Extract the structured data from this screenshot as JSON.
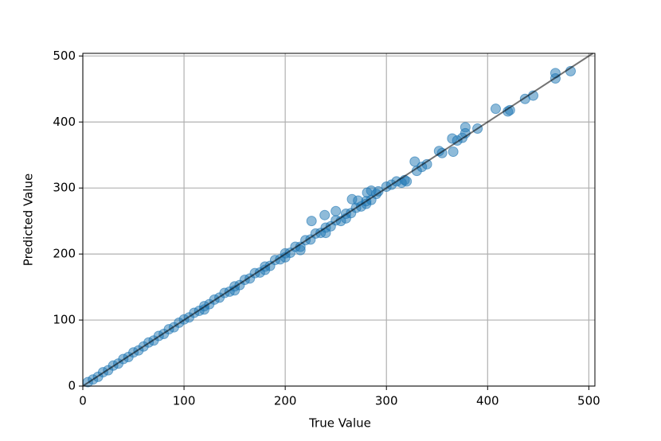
{
  "chart_data": {
    "type": "scatter",
    "x_label": "True Value",
    "y_label": "Predicted Value",
    "xlim": [
      0,
      506
    ],
    "ylim": [
      0,
      504
    ],
    "xticks": [
      0,
      100,
      200,
      300,
      400,
      500
    ],
    "yticks": [
      0,
      100,
      200,
      300,
      400,
      500
    ],
    "grid": true,
    "identity_line": true,
    "identity_color": "#000000",
    "x": [
      5,
      10,
      15,
      20,
      25,
      30,
      35,
      40,
      45,
      50,
      55,
      60,
      65,
      70,
      75,
      80,
      85,
      90,
      95,
      100,
      105,
      110,
      115,
      120,
      125,
      130,
      135,
      140,
      145,
      150,
      155,
      160,
      165,
      170,
      175,
      180,
      185,
      190,
      195,
      200,
      205,
      210,
      215,
      220,
      225,
      230,
      235,
      240,
      245,
      250,
      255,
      260,
      265,
      270,
      275,
      280,
      285,
      290,
      150,
      180,
      200,
      215,
      240,
      260,
      280,
      120,
      266,
      272,
      281,
      285,
      250,
      239,
      226,
      292,
      300,
      305,
      310,
      315,
      318,
      320,
      328,
      330,
      335,
      340,
      352,
      355,
      365,
      366,
      370,
      375,
      378,
      378,
      390,
      408,
      420,
      422,
      437,
      445,
      467,
      467,
      482
    ],
    "series": [
      {
        "color": "#1f77b4",
        "values": [
          6,
          10,
          14,
          21,
          24,
          31,
          34,
          41,
          44,
          51,
          54,
          60,
          66,
          69,
          76,
          79,
          86,
          89,
          96,
          101,
          104,
          111,
          114,
          121,
          124,
          131,
          134,
          141,
          143,
          151,
          153,
          161,
          163,
          171,
          172,
          181,
          182,
          191,
          192,
          201,
          202,
          211,
          211,
          221,
          222,
          231,
          232,
          240,
          242,
          251,
          250,
          261,
          262,
          270,
          272,
          280,
          282,
          291,
          145,
          176,
          195,
          206,
          232,
          254,
          276,
          116,
          283,
          281,
          293,
          296,
          265,
          259,
          250,
          295,
          302,
          305,
          310,
          308,
          312,
          310,
          340,
          326,
          332,
          336,
          356,
          353,
          375,
          355,
          372,
          376,
          392,
          383,
          390,
          420,
          416,
          418,
          435,
          440,
          474,
          466,
          477
        ]
      }
    ]
  }
}
